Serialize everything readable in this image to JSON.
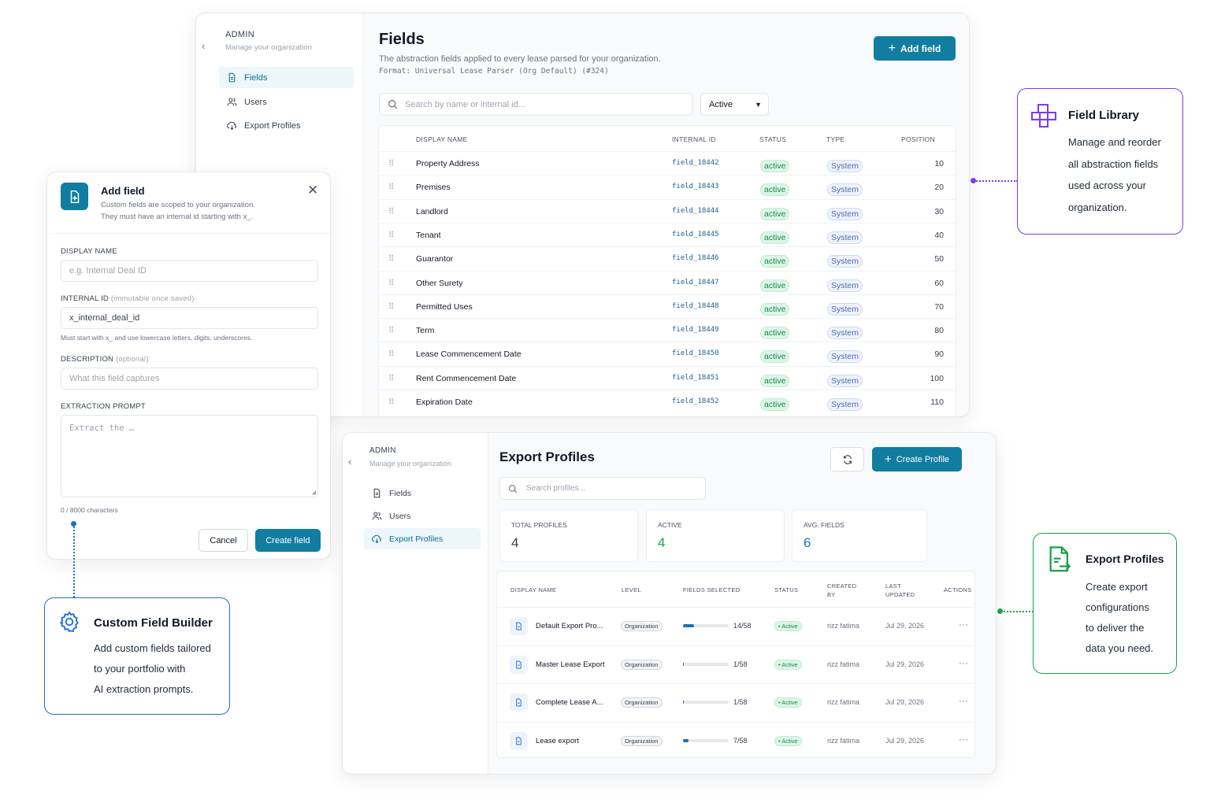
{
  "fields_panel": {
    "sidebar": {
      "admin": "ADMIN",
      "subtitle": "Manage your organization",
      "items": [
        {
          "label": "Fields",
          "icon": "file-icon",
          "selected": true
        },
        {
          "label": "Users",
          "icon": "users-icon",
          "selected": false
        },
        {
          "label": "Export Profiles",
          "icon": "cloud-sync-icon",
          "selected": false
        }
      ]
    },
    "title": "Fields",
    "description": "The abstraction fields applied to every lease parsed for your organization.",
    "format": "Format: Universal Lease Parser (Org Default) (#324)",
    "add_button": "Add field",
    "search_placeholder": "Search by name or internal id...",
    "status_filter": "Active",
    "columns": [
      "DISPLAY NAME",
      "INTERNAL ID",
      "STATUS",
      "TYPE",
      "POSITION"
    ],
    "rows": [
      {
        "name": "Property Address",
        "id": "field_18442",
        "status": "active",
        "type": "System",
        "position": "10"
      },
      {
        "name": "Premises",
        "id": "field_18443",
        "status": "active",
        "type": "System",
        "position": "20"
      },
      {
        "name": "Landlord",
        "id": "field_18444",
        "status": "active",
        "type": "System",
        "position": "30"
      },
      {
        "name": "Tenant",
        "id": "field_18445",
        "status": "active",
        "type": "System",
        "position": "40"
      },
      {
        "name": "Guarantor",
        "id": "field_18446",
        "status": "active",
        "type": "System",
        "position": "50"
      },
      {
        "name": "Other Surety",
        "id": "field_18447",
        "status": "active",
        "type": "System",
        "position": "60"
      },
      {
        "name": "Permitted Uses",
        "id": "field_18448",
        "status": "active",
        "type": "System",
        "position": "70"
      },
      {
        "name": "Term",
        "id": "field_18449",
        "status": "active",
        "type": "System",
        "position": "80"
      },
      {
        "name": "Lease Commencement Date",
        "id": "field_18450",
        "status": "active",
        "type": "System",
        "position": "90"
      },
      {
        "name": "Rent Commencement Date",
        "id": "field_18451",
        "status": "active",
        "type": "System",
        "position": "100"
      },
      {
        "name": "Expiration Date",
        "id": "field_18452",
        "status": "active",
        "type": "System",
        "position": "110"
      }
    ]
  },
  "add_field_modal": {
    "title": "Add field",
    "desc1": "Custom fields are scoped to your organization.",
    "desc2": "They must have an internal id starting with x_.",
    "display_name_label": "DISPLAY NAME",
    "display_name_placeholder": "e.g. Internal Deal ID",
    "internal_id_label": "INTERNAL ID",
    "internal_id_note": "(immutable once saved)",
    "internal_id_value": "x_internal_deal_id",
    "internal_id_hint": "Must start with x_ and use lowercase letters, digits, underscores.",
    "description_label": "DESCRIPTION",
    "description_note": "(optional)",
    "description_placeholder": "What this field captures",
    "prompt_label": "EXTRACTION PROMPT",
    "prompt_placeholder": "Extract the …",
    "char_count": "0 / 8000 characters",
    "cancel": "Cancel",
    "create": "Create field"
  },
  "callouts": {
    "field_library": {
      "title": "Field Library",
      "lines": [
        "Manage and reorder",
        "all abstraction fields",
        "used across your",
        "organization."
      ],
      "color": "#7c3aed"
    },
    "custom_builder": {
      "title": "Custom Field Builder",
      "lines": [
        "Add custom fields tailored",
        "to your portfolio with",
        "AI extraction prompts."
      ],
      "color": "#1d6fd6"
    },
    "export_profiles": {
      "title": "Export Profiles",
      "lines": [
        "Create export",
        "configurations",
        "to deliver the",
        "data you need."
      ],
      "color": "#16a34a"
    }
  },
  "export_panel": {
    "sidebar": {
      "admin": "ADMIN",
      "subtitle": "Manage your organization",
      "items": [
        {
          "label": "Fields",
          "icon": "file-icon",
          "selected": false
        },
        {
          "label": "Users",
          "icon": "users-icon",
          "selected": false
        },
        {
          "label": "Export Profiles",
          "icon": "cloud-sync-icon",
          "selected": true
        }
      ]
    },
    "title": "Export Profiles",
    "create_button": "Create Profile",
    "search_placeholder": "Search profiles...",
    "stats": [
      {
        "label": "TOTAL PROFILES",
        "value": "4",
        "color": "#374151"
      },
      {
        "label": "ACTIVE",
        "value": "4",
        "color": "#16a34a"
      },
      {
        "label": "AVG. FIELDS",
        "value": "6",
        "color": "#1d6fd6"
      }
    ],
    "columns": {
      "name": "DISPLAY NAME",
      "level": "LEVEL",
      "fields": "FIELDS SELECTED",
      "status": "STATUS",
      "created1": "CREATED",
      "created2": "BY",
      "updated1": "LAST",
      "updated2": "UPDATED",
      "actions": "ACTIONS"
    },
    "rows": [
      {
        "name": "Default Export Pro...",
        "level": "Organization",
        "fields": "14/58",
        "fraction": 0.24,
        "status": "Active",
        "created_by": "rizz fatima",
        "updated": "Jul 29, 2026"
      },
      {
        "name": "Master Lease Export",
        "level": "Organization",
        "fields": "1/58",
        "fraction": 0.02,
        "status": "Active",
        "created_by": "rizz fatima",
        "updated": "Jul 29, 2026"
      },
      {
        "name": "Complete Lease A...",
        "level": "Organization",
        "fields": "1/58",
        "fraction": 0.02,
        "status": "Active",
        "created_by": "rizz fatima",
        "updated": "Jul 29, 2026"
      },
      {
        "name": "Lease export",
        "level": "Organization",
        "fields": "7/58",
        "fraction": 0.12,
        "status": "Active",
        "created_by": "rizz fatima",
        "updated": "Jul 29, 2026"
      }
    ]
  }
}
